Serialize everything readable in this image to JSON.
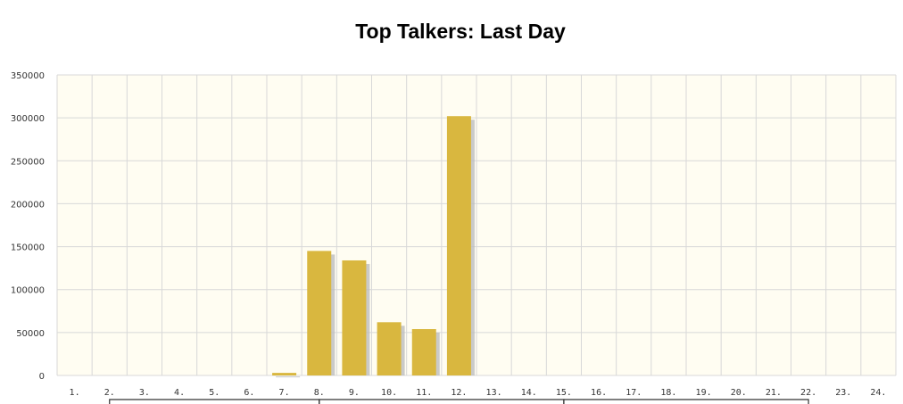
{
  "chart_data": {
    "type": "bar",
    "title": "Top Talkers: Last Day",
    "xlabel": "",
    "ylabel": "",
    "categories": [
      "1.",
      "2.",
      "3.",
      "4.",
      "5.",
      "6.",
      "7.",
      "8.",
      "9.",
      "10.",
      "11.",
      "12.",
      "13.",
      "14.",
      "15.",
      "16.",
      "17.",
      "18.",
      "19.",
      "20.",
      "21.",
      "22.",
      "23.",
      "24."
    ],
    "values": [
      0,
      0,
      0,
      0,
      0,
      0,
      3000,
      145000,
      134000,
      62000,
      54000,
      302000,
      0,
      0,
      0,
      0,
      0,
      0,
      0,
      0,
      0,
      0,
      0,
      0
    ],
    "ylim": [
      0,
      350000
    ],
    "yticks": [
      0,
      50000,
      100000,
      150000,
      200000,
      250000,
      300000,
      350000
    ],
    "ytick_labels": [
      "0",
      "50000",
      "100000",
      "150000",
      "200000",
      "250000",
      "300000",
      "350000"
    ],
    "grid": true,
    "legend": "none",
    "colors": {
      "bar": "#d9b73f",
      "bar_shadow": "#bdbdbd",
      "plot_background": "#fffdf2",
      "grid": "#d8d8d8",
      "bracket": "#333333"
    }
  }
}
